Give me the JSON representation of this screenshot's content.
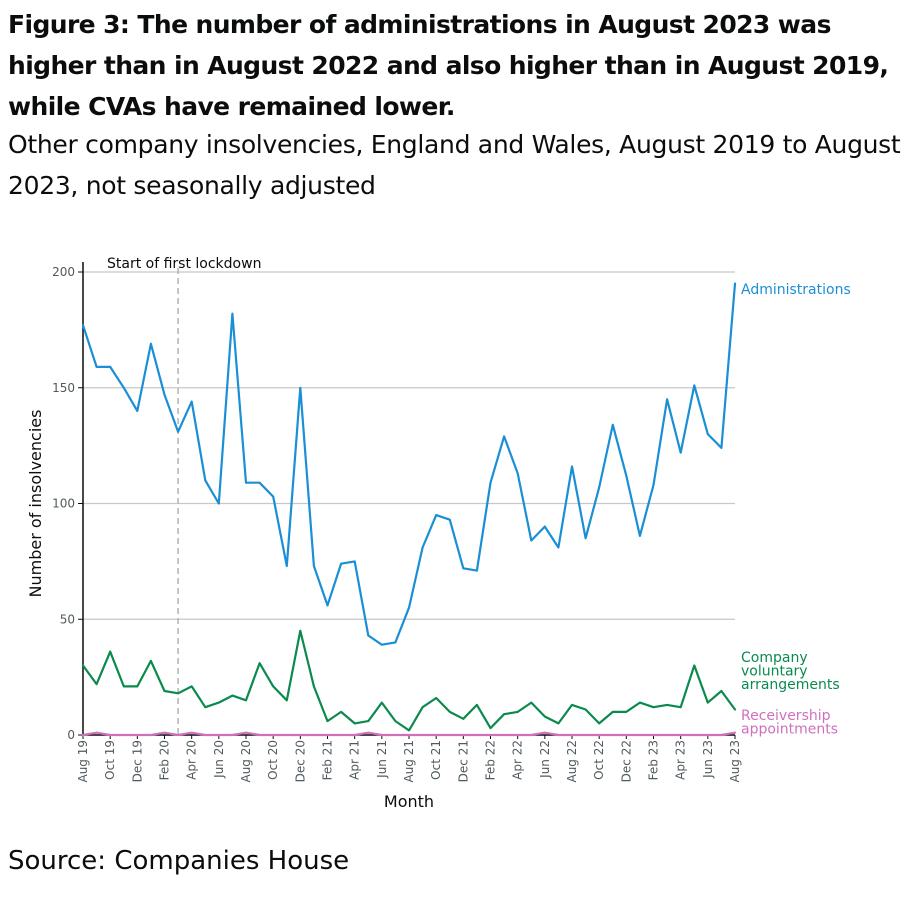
{
  "title": "Figure 3: The number of administrations in August 2023 was higher than in August 2022 and also higher than in August 2019, while CVAs have remained lower.",
  "subtitle": "Other company insolvencies, England and Wales, August 2019 to August 2023, not seasonally adjusted",
  "source": "Source: Companies House",
  "chart_data": {
    "type": "line",
    "xlabel": "Month",
    "ylabel": "Number of insolvencies",
    "ylim": [
      0,
      200
    ],
    "yticks": [
      0,
      50,
      100,
      150,
      200
    ],
    "grid": true,
    "legend": "direct labels at right end of lines",
    "x": [
      "Aug 19",
      "Sep 19",
      "Oct 19",
      "Nov 19",
      "Dec 19",
      "Jan 20",
      "Feb 20",
      "Mar 20",
      "Apr 20",
      "May 20",
      "Jun 20",
      "Jul 20",
      "Aug 20",
      "Sep 20",
      "Oct 20",
      "Nov 20",
      "Dec 20",
      "Jan 21",
      "Feb 21",
      "Mar 21",
      "Apr 21",
      "May 21",
      "Jun 21",
      "Jul 21",
      "Aug 21",
      "Sep 21",
      "Oct 21",
      "Nov 21",
      "Dec 21",
      "Jan 22",
      "Feb 22",
      "Mar 22",
      "Apr 22",
      "May 22",
      "Jun 22",
      "Jul 22",
      "Aug 22",
      "Sep 22",
      "Oct 22",
      "Nov 22",
      "Dec 22",
      "Jan 23",
      "Feb 23",
      "Mar 23",
      "Apr 23",
      "May 23",
      "Jun 23",
      "Jul 23",
      "Aug 23"
    ],
    "xtick_labels": [
      "Aug 19",
      "Oct 19",
      "Dec 19",
      "Feb 20",
      "Apr 20",
      "Jun 20",
      "Aug 20",
      "Oct 20",
      "Dec 20",
      "Feb 21",
      "Apr 21",
      "Jun 21",
      "Aug 21",
      "Oct 21",
      "Dec 21",
      "Feb 22",
      "Apr 22",
      "Jun 22",
      "Aug 22",
      "Oct 22",
      "Dec 22",
      "Feb 23",
      "Apr 23",
      "Jun 23",
      "Aug 23"
    ],
    "annotation": {
      "text": "Start of first lockdown",
      "x": "Mar 20"
    },
    "series": [
      {
        "name": "Administrations",
        "label_lines": [
          "Administrations"
        ],
        "color": "#1a8fd6",
        "values": [
          177,
          159,
          159,
          150,
          140,
          169,
          147,
          131,
          144,
          110,
          100,
          182,
          109,
          109,
          103,
          73,
          150,
          73,
          56,
          74,
          75,
          43,
          39,
          40,
          55,
          81,
          95,
          93,
          72,
          71,
          109,
          129,
          113,
          84,
          90,
          81,
          116,
          85,
          107,
          134,
          112,
          86,
          108,
          145,
          122,
          151,
          130,
          124,
          195
        ]
      },
      {
        "name": "Company voluntary arrangements",
        "label_lines": [
          "Company",
          "voluntary",
          "arrangements"
        ],
        "color": "#0b8a4e",
        "values": [
          30,
          22,
          36,
          21,
          21,
          32,
          19,
          18,
          21,
          12,
          14,
          17,
          15,
          31,
          21,
          15,
          45,
          21,
          6,
          10,
          5,
          6,
          14,
          6,
          2,
          12,
          16,
          10,
          7,
          13,
          3,
          9,
          10,
          14,
          8,
          5,
          13,
          11,
          5,
          10,
          10,
          14,
          12,
          13,
          12,
          30,
          14,
          19,
          11
        ]
      },
      {
        "name": "Receivership appointments",
        "label_lines": [
          "Receivership",
          "appointments"
        ],
        "color": "#d16fbd",
        "values": [
          0,
          1,
          0,
          0,
          0,
          0,
          1,
          0,
          1,
          0,
          0,
          0,
          1,
          0,
          0,
          0,
          0,
          0,
          0,
          0,
          0,
          1,
          0,
          0,
          0,
          0,
          0,
          0,
          0,
          0,
          0,
          0,
          0,
          0,
          1,
          0,
          0,
          0,
          0,
          0,
          0,
          0,
          0,
          0,
          0,
          0,
          0,
          0,
          1
        ]
      }
    ]
  }
}
